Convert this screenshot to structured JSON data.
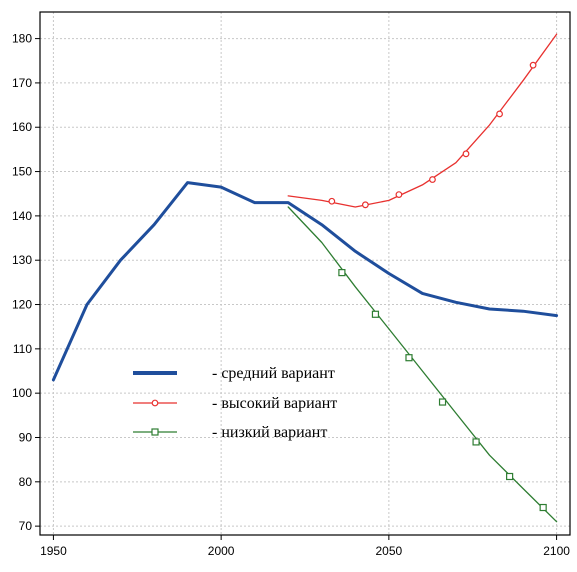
{
  "chart_data": {
    "type": "line",
    "title": "",
    "xlabel": "",
    "ylabel": "",
    "xlim": [
      1946,
      2104
    ],
    "ylim": [
      68,
      186
    ],
    "x_ticks": [
      1950,
      2000,
      2050,
      2100
    ],
    "y_ticks": [
      70,
      80,
      90,
      100,
      110,
      120,
      130,
      140,
      150,
      160,
      170,
      180
    ],
    "grid": true,
    "legend_position": "center-left",
    "series": [
      {
        "name": "- средний вариант",
        "color": "#1f4e9c",
        "marker": "none",
        "x": [
          1950,
          1960,
          1970,
          1980,
          1990,
          2000,
          2010,
          2020,
          2030,
          2040,
          2050,
          2060,
          2070,
          2080,
          2090,
          2100
        ],
        "y": [
          103,
          120,
          130,
          138,
          147.5,
          146.5,
          143,
          143,
          138,
          132,
          127,
          122.5,
          120.5,
          119,
          118.5,
          117.5
        ]
      },
      {
        "name": "- высокий вариант",
        "color": "#e8312f",
        "marker": "circle",
        "x": [
          2020,
          2030,
          2040,
          2050,
          2060,
          2070,
          2080,
          2090,
          2100
        ],
        "y": [
          144.5,
          143.5,
          142,
          143.5,
          147,
          152,
          160.5,
          170.5,
          181
        ],
        "marker_points": [
          {
            "x": 2033,
            "y": 143.3
          },
          {
            "x": 2043,
            "y": 142.5
          },
          {
            "x": 2053,
            "y": 144.8
          },
          {
            "x": 2063,
            "y": 148.2
          },
          {
            "x": 2073,
            "y": 154
          },
          {
            "x": 2083,
            "y": 163
          },
          {
            "x": 2093,
            "y": 174
          }
        ]
      },
      {
        "name": "- низкий вариант",
        "color": "#2e7d32",
        "marker": "square",
        "x": [
          2020,
          2030,
          2040,
          2050,
          2060,
          2070,
          2080,
          2090,
          2100
        ],
        "y": [
          142,
          134,
          124,
          114.5,
          105,
          95.5,
          86,
          78.5,
          71
        ],
        "marker_points": [
          {
            "x": 2036,
            "y": 127.2
          },
          {
            "x": 2046,
            "y": 117.8
          },
          {
            "x": 2056,
            "y": 108
          },
          {
            "x": 2066,
            "y": 98
          },
          {
            "x": 2076,
            "y": 89
          },
          {
            "x": 2086,
            "y": 81.2
          },
          {
            "x": 2096,
            "y": 74.2
          }
        ]
      }
    ]
  }
}
